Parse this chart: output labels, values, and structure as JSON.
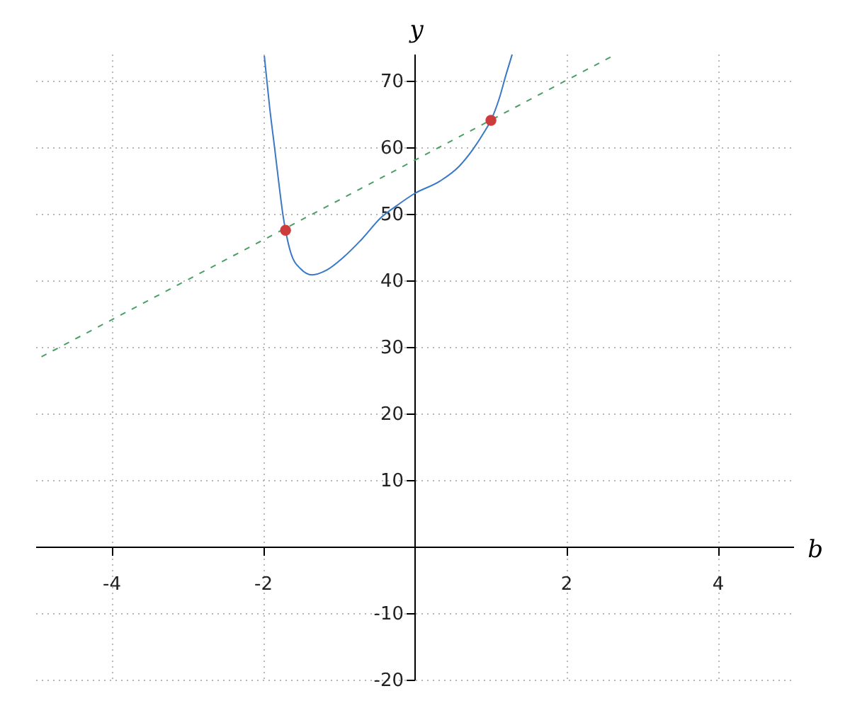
{
  "chart_data": {
    "type": "line",
    "xlabel": "b",
    "ylabel": "y",
    "xlim": [
      -5,
      5
    ],
    "ylim": [
      -20,
      74
    ],
    "xticks": [
      -4,
      -2,
      2,
      4
    ],
    "yticks": [
      -20,
      -10,
      10,
      20,
      30,
      40,
      50,
      60,
      70
    ],
    "grid": true,
    "line_style": "solid",
    "series": [
      {
        "color": "#3a78c8",
        "x": [
          -1.98,
          -1.91,
          -1.84,
          -1.78,
          -1.73,
          -1.7,
          -1.63,
          -1.5,
          -1.35,
          -1.16,
          -0.94,
          -0.69,
          -0.44,
          -0.22,
          0.0,
          0.34,
          0.59,
          0.77,
          0.93,
          1.01,
          1.12,
          1.21,
          1.29
        ],
        "values": [
          73.7,
          66.0,
          59.5,
          53.8,
          49.5,
          47.5,
          44.1,
          41.7,
          40.8,
          41.5,
          43.4,
          46.2,
          49.4,
          51.3,
          53.0,
          54.9,
          57.1,
          59.6,
          62.4,
          64.0,
          67.3,
          70.9,
          73.9
        ]
      },
      {
        "type": "line",
        "line_style": "dashed",
        "color": "#4aa064",
        "x": [
          -4.92,
          2.67
        ],
        "values": [
          28.5,
          74.0
        ]
      },
      {
        "type": "scatter",
        "marker": "circle",
        "color": "#cc3c3c",
        "x": [
          -1.7,
          1.01
        ],
        "values": [
          47.5,
          64.0
        ]
      }
    ]
  }
}
